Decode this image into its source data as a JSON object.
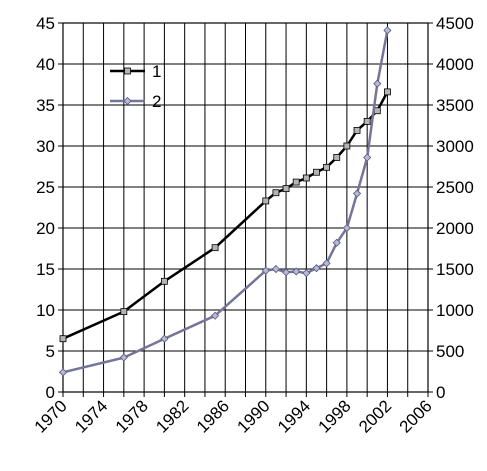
{
  "chart_data": {
    "type": "line",
    "x_axis": {
      "min": 1970,
      "max": 2006,
      "ticks": [
        1970,
        1974,
        1978,
        1982,
        1986,
        1990,
        1994,
        1998,
        2002,
        2006
      ],
      "gridlines_every": 2,
      "grid": true
    },
    "y_left": {
      "min": 0,
      "max": 45,
      "ticks": [
        0,
        5,
        10,
        15,
        20,
        25,
        30,
        35,
        40,
        45
      ]
    },
    "y_right": {
      "min": 0,
      "max": 4500,
      "ticks": [
        0,
        500,
        1000,
        1500,
        2000,
        2500,
        3000,
        3500,
        4000,
        4500
      ]
    },
    "legend": {
      "placement": "top-left"
    },
    "series": [
      {
        "name": "1",
        "axis": "left",
        "color": "#000000",
        "marker": "square",
        "marker_fill": "#b4b4b4",
        "points": [
          [
            1970,
            6.5
          ],
          [
            1976,
            9.8
          ],
          [
            1980,
            13.5
          ],
          [
            1985,
            17.6
          ],
          [
            1990,
            23.3
          ],
          [
            1991,
            24.3
          ],
          [
            1992,
            24.8
          ],
          [
            1993,
            25.6
          ],
          [
            1994,
            26.1
          ],
          [
            1995,
            26.8
          ],
          [
            1996,
            27.4
          ],
          [
            1997,
            28.6
          ],
          [
            1998,
            30.0
          ],
          [
            1999,
            31.9
          ],
          [
            2000,
            33.0
          ],
          [
            2001,
            34.3
          ],
          [
            2002,
            36.6
          ]
        ]
      },
      {
        "name": "2",
        "axis": "right",
        "color": "#75759a",
        "marker": "diamond",
        "marker_fill": "#b8b8d8",
        "points": [
          [
            1970,
            240
          ],
          [
            1976,
            420
          ],
          [
            1980,
            650
          ],
          [
            1985,
            930
          ],
          [
            1990,
            1480
          ],
          [
            1991,
            1500
          ],
          [
            1992,
            1460
          ],
          [
            1993,
            1470
          ],
          [
            1994,
            1450
          ],
          [
            1995,
            1510
          ],
          [
            1996,
            1570
          ],
          [
            1997,
            1820
          ],
          [
            1998,
            2000
          ],
          [
            1999,
            2420
          ],
          [
            2000,
            2860
          ],
          [
            2001,
            3760
          ],
          [
            2002,
            4410
          ]
        ]
      }
    ]
  }
}
